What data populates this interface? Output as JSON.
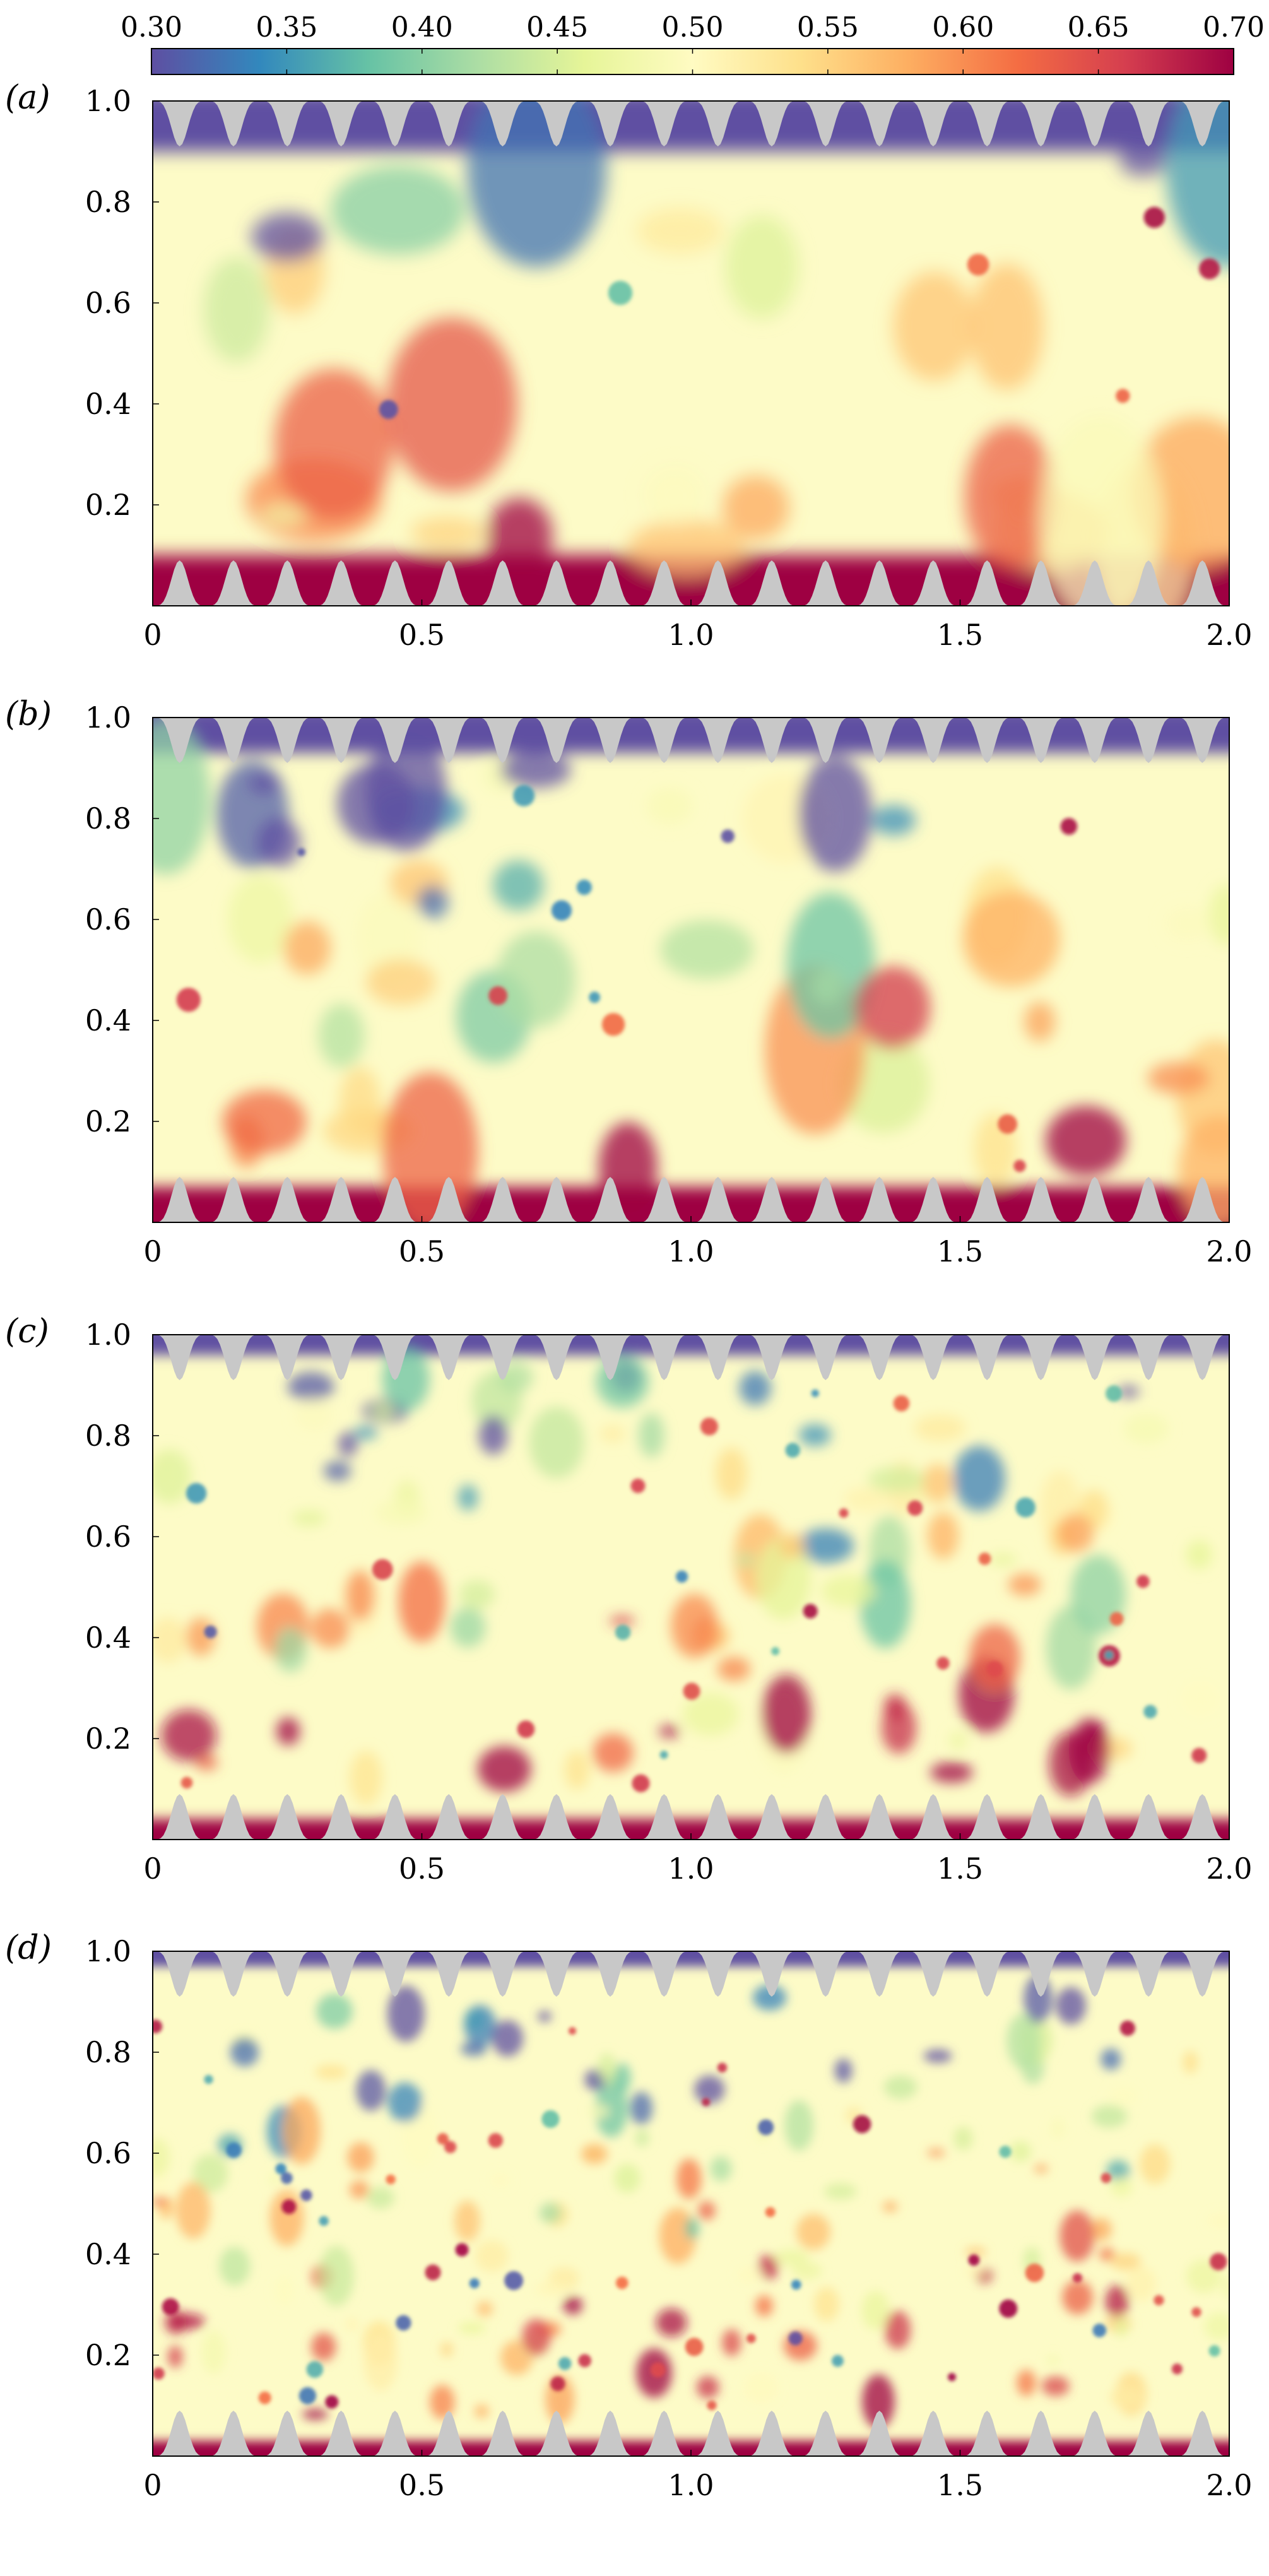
{
  "colorbar": {
    "ticks": [
      "0.30",
      "0.35",
      "0.40",
      "0.45",
      "0.50",
      "0.55",
      "0.60",
      "0.65",
      "0.70"
    ],
    "range": [
      0.3,
      0.7
    ],
    "colormap": "Spectral_r",
    "colors": [
      "#5e4fa2",
      "#3288bd",
      "#66c2a5",
      "#abdda4",
      "#e6f598",
      "#fffbc2",
      "#fee08b",
      "#fdae61",
      "#f46d43",
      "#d53e4f",
      "#9e0142"
    ]
  },
  "colors": {
    "wall": "#c8c8c8",
    "cold": "#5e4fa2",
    "hot": "#9e0142",
    "background": "#fdfbc7"
  },
  "chart_data": [
    {
      "type": "heatmap",
      "panel_label": "(a)",
      "xlabel": "",
      "ylabel": "",
      "xlim": [
        0,
        2.0
      ],
      "ylim": [
        0,
        1.0
      ],
      "xticks": [
        "0",
        "0.5",
        "1.0",
        "1.5",
        "2.0"
      ],
      "yticks": [
        "0.2",
        "0.4",
        "0.6",
        "0.8",
        "1.0"
      ],
      "xtick_values": [
        0,
        0.5,
        1.0,
        1.5,
        2.0
      ],
      "ytick_values": [
        0.2,
        0.4,
        0.6,
        0.8,
        1.0
      ],
      "grid": false
    },
    {
      "type": "heatmap",
      "panel_label": "(b)",
      "xlabel": "",
      "ylabel": "",
      "xlim": [
        0,
        2.0
      ],
      "ylim": [
        0,
        1.0
      ],
      "xticks": [
        "0",
        "0.5",
        "1.0",
        "1.5",
        "2.0"
      ],
      "yticks": [
        "0.2",
        "0.4",
        "0.6",
        "0.8",
        "1.0"
      ],
      "xtick_values": [
        0,
        0.5,
        1.0,
        1.5,
        2.0
      ],
      "ytick_values": [
        0.2,
        0.4,
        0.6,
        0.8,
        1.0
      ],
      "grid": false
    },
    {
      "type": "heatmap",
      "panel_label": "(c)",
      "xlabel": "",
      "ylabel": "",
      "xlim": [
        0,
        2.0
      ],
      "ylim": [
        0,
        1.0
      ],
      "xticks": [
        "0",
        "0.5",
        "1.0",
        "1.5",
        "2.0"
      ],
      "yticks": [
        "0.2",
        "0.4",
        "0.6",
        "0.8",
        "1.0"
      ],
      "xtick_values": [
        0,
        0.5,
        1.0,
        1.5,
        2.0
      ],
      "ytick_values": [
        0.2,
        0.4,
        0.6,
        0.8,
        1.0
      ],
      "grid": false
    },
    {
      "type": "heatmap",
      "panel_label": "(d)",
      "xlabel": "",
      "ylabel": "",
      "xlim": [
        0,
        2.0
      ],
      "ylim": [
        0,
        1.0
      ],
      "xticks": [
        "0",
        "0.5",
        "1.0",
        "1.5",
        "2.0"
      ],
      "yticks": [
        "0.2",
        "0.4",
        "0.6",
        "0.8",
        "1.0"
      ],
      "xtick_values": [
        0,
        0.5,
        1.0,
        1.5,
        2.0
      ],
      "ytick_values": [
        0.2,
        0.4,
        0.6,
        0.8,
        1.0
      ],
      "grid": false
    }
  ]
}
